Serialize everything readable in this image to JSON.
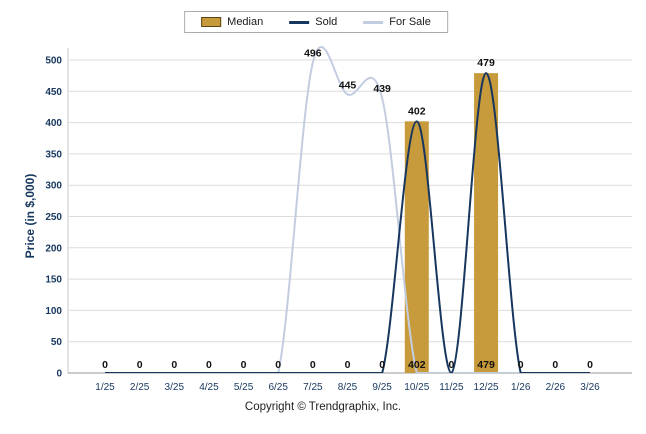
{
  "chart_data": {
    "type": "combo-bar-line",
    "title": "",
    "ylabel": "Price (in $,000)",
    "ylim": [
      0,
      500
    ],
    "yticks": [
      0,
      50,
      100,
      150,
      200,
      250,
      300,
      350,
      400,
      450,
      500
    ],
    "grid": "horizontal",
    "legend_position": "top-center",
    "categories": [
      "1/25",
      "2/25",
      "3/25",
      "4/25",
      "5/25",
      "6/25",
      "7/25",
      "8/25",
      "9/25",
      "10/25",
      "11/25",
      "12/25",
      "1/26",
      "2/26",
      "3/26"
    ],
    "series": [
      {
        "name": "Median",
        "type": "bar",
        "color": "#C79A3B",
        "values": [
          0,
          0,
          0,
          0,
          0,
          0,
          0,
          0,
          0,
          402,
          0,
          479,
          0,
          0,
          0
        ]
      },
      {
        "name": "Sold",
        "type": "line",
        "color": "#17375E",
        "values": [
          0,
          0,
          0,
          0,
          0,
          0,
          0,
          0,
          0,
          402,
          0,
          479,
          0,
          0,
          0
        ]
      },
      {
        "name": "For Sale",
        "type": "line",
        "color": "#C3CDE2",
        "values": [
          0,
          0,
          0,
          0,
          0,
          0,
          496,
          445,
          439,
          0,
          0,
          0,
          0,
          0,
          0
        ]
      }
    ],
    "labels": {
      "median_bottom": [
        "0",
        "0",
        "0",
        "0",
        "0",
        "0",
        "0",
        "0",
        "0",
        "402",
        "0",
        "479",
        "0",
        "0",
        "0"
      ],
      "sold_peaks": [
        {
          "index": 9,
          "text": "402"
        },
        {
          "index": 11,
          "text": "479"
        }
      ],
      "for_sale_points": [
        {
          "index": 6,
          "text": "496"
        },
        {
          "index": 7,
          "text": "445"
        },
        {
          "index": 8,
          "text": "439"
        }
      ]
    },
    "colors": {
      "grid": "#DCDCDC",
      "baseline": "#999999",
      "axis_line": "#C8C8C8",
      "tick_text": "#17375E",
      "value_text": "#111111"
    },
    "footer": "Copyright © Trendgraphix, Inc."
  }
}
